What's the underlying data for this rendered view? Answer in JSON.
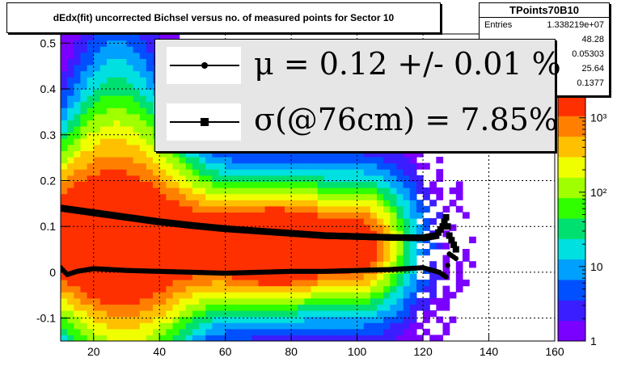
{
  "title": "dEdx(fit) uncorrected Bichsel versus no. of measured points for Sector 10",
  "stats": {
    "name": "TPoints70B10",
    "rows": [
      {
        "label": "Entries",
        "value": "1.338219e+07"
      },
      {
        "label": "",
        "value": "48.28"
      },
      {
        "label": "",
        "value": "0.05303"
      },
      {
        "label": "",
        "value": "25.64"
      },
      {
        "label": "",
        "value": "0.1377"
      }
    ]
  },
  "legend": {
    "mu_text": "μ  =  0.12 +/-  0.01 %",
    "sigma_text": "σ(@76cm) =  7.85%"
  },
  "chart_data": {
    "type": "heatmap",
    "title": "dEdx(fit) uncorrected Bichsel versus no. of measured points for Sector 10",
    "xlabel": "",
    "ylabel": "",
    "xlim": [
      10,
      160
    ],
    "ylim": [
      -0.15,
      0.52
    ],
    "x_ticks": [
      "20",
      "40",
      "60",
      "80",
      "100",
      "120",
      "140",
      "160"
    ],
    "y_ticks": [
      "-0.1",
      "0",
      "0.1",
      "0.2",
      "0.3",
      "0.4",
      "0.5"
    ],
    "z_scale": "log",
    "z_ticks": [
      "1",
      "10",
      "10²",
      "10³"
    ],
    "zlim": [
      1,
      2000
    ],
    "grid": true,
    "colormap": [
      "#7a00ff",
      "#3b1eff",
      "#0050ff",
      "#00a0ff",
      "#00e0e0",
      "#00e070",
      "#30ff00",
      "#a0ff00",
      "#f0ff00",
      "#ffc000",
      "#ff8000",
      "#ff3000"
    ],
    "series": [
      {
        "marker": "circle",
        "x": [
          10,
          12,
          15,
          20,
          25,
          30,
          40,
          50,
          60,
          70,
          80,
          90,
          100,
          110,
          120,
          125,
          127,
          128,
          130
        ],
        "values": [
          0.01,
          -0.005,
          0.002,
          0.008,
          0.006,
          0.004,
          0.002,
          0.0,
          -0.002,
          0.0,
          0.002,
          0.002,
          0.004,
          0.006,
          0.01,
          0.0,
          -0.01,
          0.04,
          0.03
        ]
      },
      {
        "marker": "square",
        "x": [
          10,
          12,
          15,
          20,
          25,
          30,
          40,
          50,
          60,
          70,
          80,
          90,
          100,
          110,
          120,
          124,
          126,
          127,
          128,
          130
        ],
        "values": [
          0.14,
          0.138,
          0.135,
          0.13,
          0.125,
          0.12,
          0.11,
          0.102,
          0.095,
          0.09,
          0.085,
          0.08,
          0.078,
          0.076,
          0.075,
          0.08,
          0.1,
          0.12,
          0.08,
          0.05
        ]
      }
    ]
  }
}
